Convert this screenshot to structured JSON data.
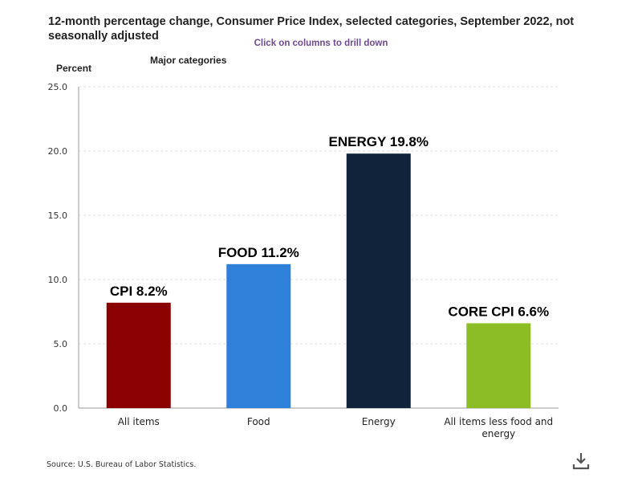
{
  "chart_data": {
    "type": "bar",
    "title": "12-month percentage change, Consumer Price Index, selected categories, September 2022, not seasonally adjusted",
    "subtitle": "Click on columns to drill down",
    "ylabel": "Percent",
    "category_group_label": "Major categories",
    "xlabel": "",
    "ylim": [
      0,
      25
    ],
    "yticks": [
      "0.0",
      "5.0",
      "10.0",
      "15.0",
      "20.0",
      "25.0"
    ],
    "ytick_values": [
      0,
      5,
      10,
      15,
      20,
      25
    ],
    "categories": [
      "All items",
      "Food",
      "Energy",
      "All items less food and energy"
    ],
    "category_lines": [
      [
        "All items"
      ],
      [
        "Food"
      ],
      [
        "Energy"
      ],
      [
        "All items less food and",
        "energy"
      ]
    ],
    "values": [
      8.2,
      11.2,
      19.8,
      6.6
    ],
    "annotations": [
      "CPI 8.2%",
      "FOOD 11.2%",
      "ENERGY 19.8%",
      "CORE CPI 6.6%"
    ],
    "colors": [
      "#8b0000",
      "#2e80d8",
      "#10233a",
      "#8cbd25"
    ],
    "grid": true,
    "legend": "none"
  },
  "source": "Source: U.S. Bureau of Labor Statistics.",
  "download_icon": "download-icon",
  "colors": {
    "grid": "#dddddd",
    "axis": "#999999",
    "text": "#222222",
    "subtitle": "#6e4a8e"
  }
}
